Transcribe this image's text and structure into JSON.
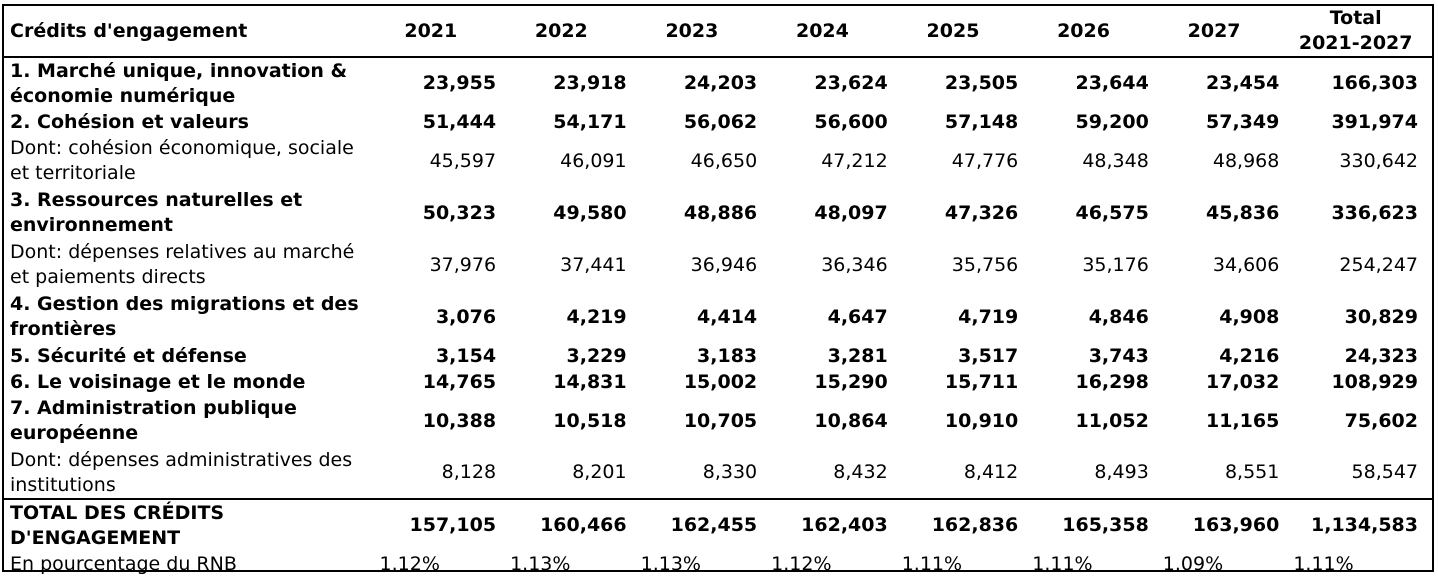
{
  "header": {
    "label": "Crédits d'engagement",
    "years": [
      "2021",
      "2022",
      "2023",
      "2024",
      "2025",
      "2026",
      "2027"
    ],
    "total_line1": "Total",
    "total_line2": "2021-2027"
  },
  "rows": [
    {
      "label": "1. Marché unique, innovation & économie numérique",
      "values": [
        "23,955",
        "23,918",
        "24,203",
        "23,624",
        "23,505",
        "23,644",
        "23,454"
      ],
      "total": "166,303"
    },
    {
      "label": "2. Cohésion et valeurs",
      "values": [
        "51,444",
        "54,171",
        "56,062",
        "56,600",
        "57,148",
        "59,200",
        "57,349"
      ],
      "total": "391,974"
    },
    {
      "label": "Dont: cohésion économique, sociale et territoriale",
      "values": [
        "45,597",
        "46,091",
        "46,650",
        "47,212",
        "47,776",
        "48,348",
        "48,968"
      ],
      "total": "330,642"
    },
    {
      "label": "3. Ressources naturelles et environnement",
      "values": [
        "50,323",
        "49,580",
        "48,886",
        "48,097",
        "47,326",
        "46,575",
        "45,836"
      ],
      "total": "336,623"
    },
    {
      "label": "Dont: dépenses relatives au marché et paiements directs",
      "values": [
        "37,976",
        "37,441",
        "36,946",
        "36,346",
        "35,756",
        "35,176",
        "34,606"
      ],
      "total": "254,247"
    },
    {
      "label": "4. Gestion des migrations et des frontières",
      "values": [
        "3,076",
        "4,219",
        "4,414",
        "4,647",
        "4,719",
        "4,846",
        "4,908"
      ],
      "total": "30,829"
    },
    {
      "label": "5. Sécurité et défense",
      "values": [
        "3,154",
        "3,229",
        "3,183",
        "3,281",
        "3,517",
        "3,743",
        "4,216"
      ],
      "total": "24,323"
    },
    {
      "label": "6. Le voisinage et le monde",
      "values": [
        "14,765",
        "14,831",
        "15,002",
        "15,290",
        "15,711",
        "16,298",
        "17,032"
      ],
      "total": "108,929"
    },
    {
      "label": "7. Administration publique européenne",
      "values": [
        "10,388",
        "10,518",
        "10,705",
        "10,864",
        "10,910",
        "11,052",
        "11,165"
      ],
      "total": "75,602"
    },
    {
      "label": "Dont: dépenses administratives des institutions",
      "values": [
        "8,128",
        "8,201",
        "8,330",
        "8,432",
        "8,412",
        "8,493",
        "8,551"
      ],
      "total": "58,547"
    }
  ],
  "total_row": {
    "label": "TOTAL DES CRÉDITS D'ENGAGEMENT",
    "values": [
      "157,105",
      "160,466",
      "162,455",
      "162,403",
      "162,836",
      "165,358",
      "163,960"
    ],
    "total": "1,134,583"
  },
  "pct_row": {
    "label": "En pourcentage du RNB",
    "values": [
      "1.12%",
      "1.13%",
      "1.13%",
      "1.12%",
      "1.11%",
      "1.11%",
      "1.09%"
    ],
    "total": "1.11%"
  }
}
